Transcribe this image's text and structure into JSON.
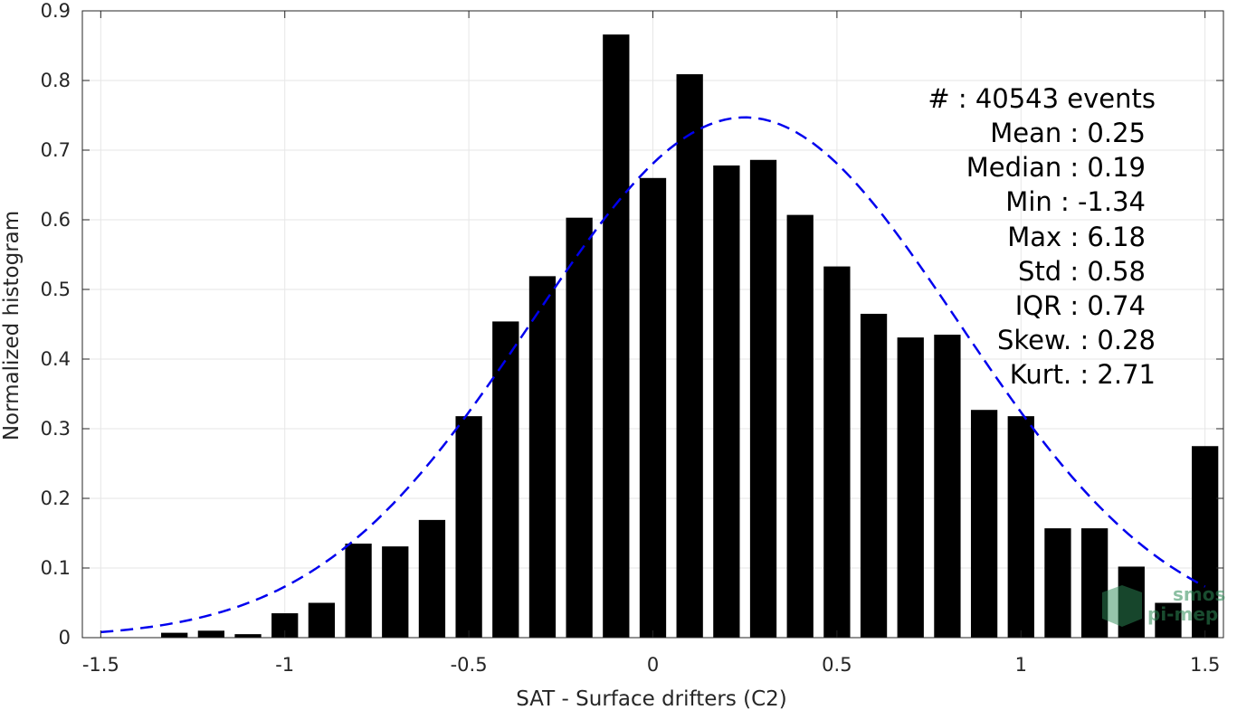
{
  "chart_data": {
    "type": "bar",
    "xlabel": "SAT - Surface drifters (C2)",
    "ylabel": "Normalized histogram",
    "xlim": [
      -1.55,
      1.55
    ],
    "ylim": [
      0,
      0.9
    ],
    "xticks": [
      "-1.5",
      "-1",
      "-0.5",
      "0",
      "0.5",
      "1",
      "1.5"
    ],
    "xtick_values": [
      -1.5,
      -1,
      -0.5,
      0,
      0.5,
      1,
      1.5
    ],
    "yticks": [
      "0",
      "0.1",
      "0.2",
      "0.3",
      "0.4",
      "0.5",
      "0.6",
      "0.7",
      "0.8",
      "0.9"
    ],
    "ytick_values": [
      0,
      0.1,
      0.2,
      0.3,
      0.4,
      0.5,
      0.6,
      0.7,
      0.8,
      0.9
    ],
    "grid": true,
    "bar_color": "#000000",
    "bar_width": 0.072,
    "x": [
      -1.3,
      -1.2,
      -1.1,
      -1.0,
      -0.9,
      -0.8,
      -0.7,
      -0.6,
      -0.5,
      -0.4,
      -0.3,
      -0.2,
      -0.1,
      0.0,
      0.1,
      0.2,
      0.3,
      0.4,
      0.5,
      0.6,
      0.7,
      0.8,
      0.9,
      1.0,
      1.1,
      1.2,
      1.3,
      1.4,
      1.5
    ],
    "values": [
      0.007,
      0.01,
      0.005,
      0.035,
      0.05,
      0.135,
      0.131,
      0.169,
      0.318,
      0.454,
      0.519,
      0.603,
      0.866,
      0.66,
      0.809,
      0.678,
      0.686,
      0.607,
      0.533,
      0.465,
      0.431,
      0.435,
      0.327,
      0.318,
      0.157,
      0.157,
      0.102,
      0.05,
      0.275
    ],
    "fit_curve": {
      "style": "dashed",
      "color": "#0000ee",
      "mean": 0.25,
      "std": 0.58,
      "peak": 0.747,
      "x_range": [
        -1.5,
        1.5
      ]
    },
    "annotations": [
      "#  : 40543 events",
      "Mean : 0.25",
      "Median : 0.19",
      "Min : -1.34",
      "Max : 6.18",
      "Std : 0.58",
      "IQR : 0.74",
      "Skew. : 0.28",
      "Kurt. : 2.71"
    ]
  },
  "logo": {
    "line1": "smos",
    "line2": "pi-mep",
    "color": "#2e8b57"
  }
}
